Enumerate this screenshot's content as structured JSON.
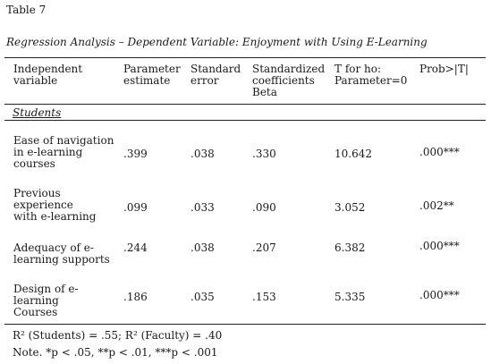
{
  "table": {
    "number": "Table 7",
    "title": "Regression Analysis – Dependent Variable: Enjoyment with Using E-Learning",
    "headers": [
      "Independent\nvariable",
      "Parameter\nestimate",
      "Standard\nerror",
      "Standardized\ncoefficients\nBeta",
      "T for ho:\nParameter=0",
      "Prob>|T|"
    ],
    "section_label": "Students",
    "rows": [
      {
        "variable": "Ease of navigation\nin e-learning\ncourses",
        "estimate": ".399",
        "se": ".038",
        "beta": ".330",
        "t": "10.642",
        "p": ".000***"
      },
      {
        "variable": "Previous\nexperience\nwith e-learning",
        "estimate": ".099",
        "se": ".033",
        "beta": ".090",
        "t": "3.052",
        "p": ".002**"
      },
      {
        "variable": "Adequacy of e-\nlearning supports",
        "estimate": ".244",
        "se": ".038",
        "beta": ".207",
        "t": "6.382",
        "p": ".000***"
      },
      {
        "variable": "Design of e-\nlearning\nCourses",
        "estimate": ".186",
        "se": ".035",
        "beta": ".153",
        "t": "5.335",
        "p": ".000***"
      }
    ]
  },
  "footer": {
    "r2": "R² (Students) = .55; R² (Faculty) = .40",
    "note": "Note. *p < .05, **p < .01, ***p < .001"
  }
}
